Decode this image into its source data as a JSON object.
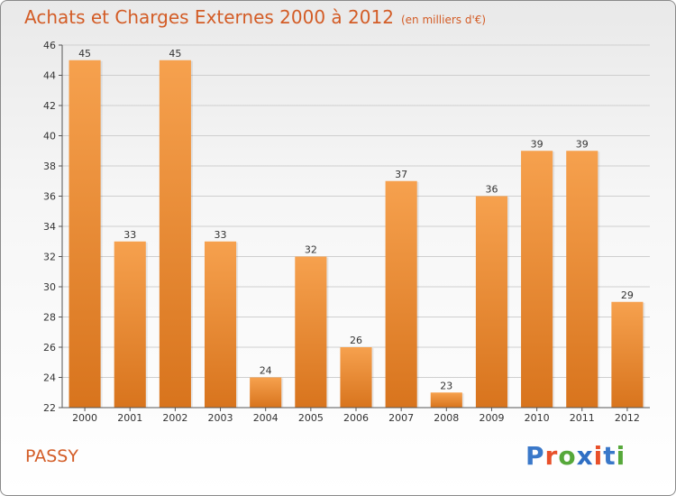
{
  "title": "Achats et Charges Externes 2000 à 2012",
  "subtitle": "(en milliers d'€)",
  "place": "PASSY",
  "logo": {
    "letters": [
      "P",
      "r",
      "o",
      "x",
      "i",
      "t",
      "i"
    ],
    "colors": [
      "#3a78c9",
      "#e8502a",
      "#56a83a",
      "#2f6fc4",
      "#e8502a",
      "#3a78c9",
      "#56a83a"
    ]
  },
  "chart_data": {
    "type": "bar",
    "categories": [
      "2000",
      "2001",
      "2002",
      "2003",
      "2004",
      "2005",
      "2006",
      "2007",
      "2008",
      "2009",
      "2010",
      "2011",
      "2012"
    ],
    "values": [
      45,
      33,
      45,
      33,
      24,
      32,
      26,
      37,
      23,
      36,
      39,
      39,
      29
    ],
    "ylim": [
      22,
      46
    ],
    "yticks": [
      22,
      24,
      26,
      28,
      30,
      32,
      34,
      36,
      38,
      40,
      42,
      44,
      46
    ],
    "grid": true,
    "colors": {
      "bar_light": "#f6a14e",
      "bar_dark": "#d8741d",
      "grid": "#cfcfcf",
      "axis": "#555555",
      "text": "#333333"
    }
  }
}
